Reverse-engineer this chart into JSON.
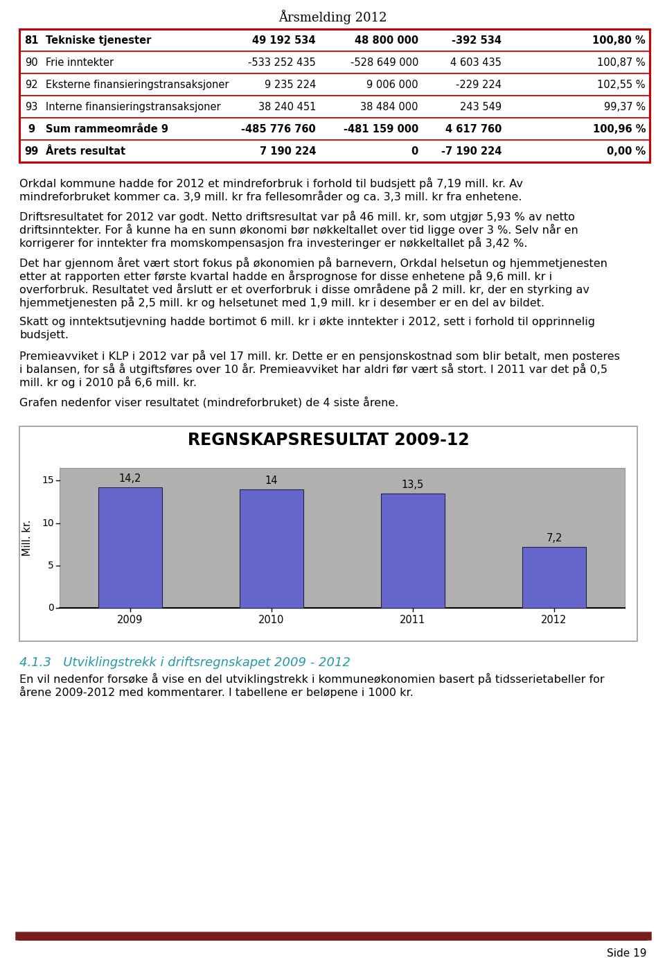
{
  "page_title": "Årsmelding 2012",
  "table": {
    "rows": [
      {
        "bold": true,
        "num": "81",
        "name": "Tekniske tjenester",
        "regnskap": "49 192 534",
        "budsjett": "48 800 000",
        "avvik": "-392 534",
        "pst": "100,80 %"
      },
      {
        "bold": false,
        "num": "90",
        "name": "Frie inntekter",
        "regnskap": "-533 252 435",
        "budsjett": "-528 649 000",
        "avvik": "4 603 435",
        "pst": "100,87 %"
      },
      {
        "bold": false,
        "num": "92",
        "name": "Eksterne finansieringstransaksjoner",
        "regnskap": "9 235 224",
        "budsjett": "9 006 000",
        "avvik": "-229 224",
        "pst": "102,55 %"
      },
      {
        "bold": false,
        "num": "93",
        "name": "Interne finansieringstransaksjoner",
        "regnskap": "38 240 451",
        "budsjett": "38 484 000",
        "avvik": "243 549",
        "pst": "99,37 %"
      },
      {
        "bold": true,
        "num": "9",
        "name": "Sum rammeområde 9",
        "regnskap": "-485 776 760",
        "budsjett": "-481 159 000",
        "avvik": "4 617 760",
        "pst": "100,96 %"
      },
      {
        "bold": true,
        "num": "99",
        "name": "Årets resultat",
        "regnskap": "7 190 224",
        "budsjett": "0",
        "avvik": "-7 190 224",
        "pst": "0,00 %"
      }
    ],
    "border_color": "#cc0000"
  },
  "body_paragraphs": [
    [
      "Orkdal kommune hadde for 2012 et mindreforbruk i forhold til budsjett på 7,19 mill. kr. Av",
      "mindreforbruket kommer ca. 3,9 mill. kr fra fellesområder og ca. 3,3 mill. kr fra enhetene."
    ],
    [
      "Driftsresultatet for 2012 var godt. Netto driftsresultat var på 46 mill. kr, som utgjør 5,93 % av netto",
      "driftsinntekter. For å kunne ha en sunn økonomi bør nøkkeltallet over tid ligge over 3 %. Selv når en",
      "korrigerer for inntekter fra momskompensasjon fra investeringer er nøkkeltallet på 3,42 %."
    ],
    [
      "Det har gjennom året vært stort fokus på økonomien på barnevern, Orkdal helsetun og hjemmetjenesten",
      "etter at rapporten etter første kvartal hadde en årsprognose for disse enhetene på 9,6 mill. kr i",
      "overforbruk. Resultatet ved årslutt er et overforbruk i disse områdene på 2 mill. kr, der en styrking av",
      "hjemmetjenesten på 2,5 mill. kr og helsetunet med 1,9 mill. kr i desember er en del av bildet."
    ],
    [
      "Skatt og inntektsutjevning hadde bortimot 6 mill. kr i økte inntekter i 2012, sett i forhold til opprinnelig",
      "budsjett."
    ],
    [
      "Premieavviket i KLP i 2012 var på vel 17 mill. kr. Dette er en pensjonskostnad som blir betalt, men posteres",
      "i balansen, for så å utgiftsføres over 10 år. Premieavviket har aldri før vært så stort. I 2011 var det på 0,5",
      "mill. kr og i 2010 på 6,6 mill. kr."
    ],
    [
      "Grafen nedenfor viser resultatet (mindreforbruket) de 4 siste årene."
    ]
  ],
  "chart": {
    "title": "REGNSKAPSRESULTAT 2009-12",
    "years": [
      "2009",
      "2010",
      "2011",
      "2012"
    ],
    "values": [
      14.2,
      14.0,
      13.5,
      7.2
    ],
    "labels": [
      "14,2",
      "14",
      "13,5",
      "7,2"
    ],
    "bar_color": "#6666cc",
    "plot_bg": "#b0b0b0",
    "ylabel": "Mill. kr.",
    "yticks": [
      0,
      5,
      10,
      15
    ],
    "ylim_max": 16.5
  },
  "section_title": "4.1.3   Utviklingstrekk i driftsregnskapet 2009 - 2012",
  "section_color": "#2299aa",
  "section_lines": [
    "En vil nedenfor forsøke å vise en del utviklingstrekk i kommuneøkonomien basert på tidsserietabeller for",
    "årene 2009-2012 med kommentarer. I tabellene er beløpene i 1000 kr."
  ],
  "footer_color": "#7a1f1f",
  "page_num": "Side 19"
}
